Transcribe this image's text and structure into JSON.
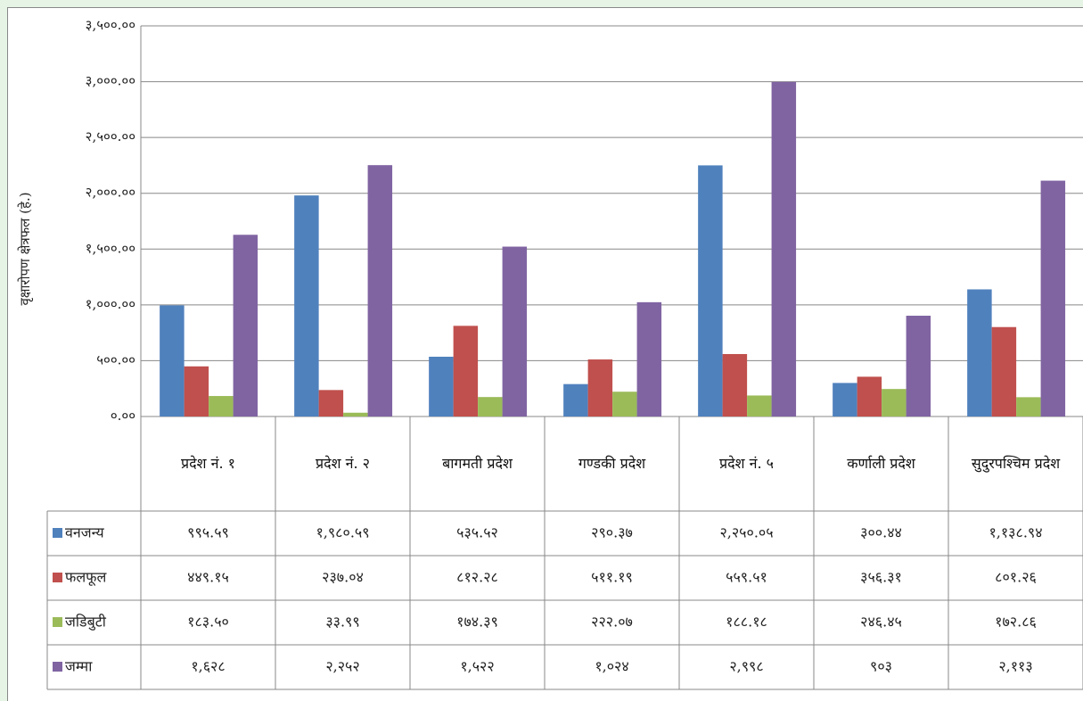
{
  "chart_data": {
    "type": "bar",
    "y_axis_label": "वृक्षारोपण क्षेत्रफल (हे.)",
    "categories": [
      "प्रदेश नं. १",
      "प्रदेश नं. २",
      "बागमती प्रदेश",
      "गण्डकी प्रदेश",
      "प्रदेश नं. ५",
      "कर्णाली प्रदेश",
      "सुदुरपश्चिम प्रदेश"
    ],
    "series": [
      {
        "name": "वनजन्य",
        "color": "#4f81bd",
        "values": [
          995.59,
          1980.59,
          535.52,
          290.37,
          2250.05,
          300.44,
          1138.94
        ],
        "value_labels": [
          "९९५.५९",
          "१,९८०.५९",
          "५३५.५२",
          "२९०.३७",
          "२,२५०.०५",
          "३००.४४",
          "१,१३८.९४"
        ]
      },
      {
        "name": "फलफूल",
        "color": "#c0504d",
        "values": [
          449.15,
          237.04,
          812.28,
          511.19,
          559.51,
          356.31,
          801.26
        ],
        "value_labels": [
          "४४९.१५",
          "२३७.०४",
          "८१२.२८",
          "५११.१९",
          "५५९.५१",
          "३५६.३१",
          "८०१.२६"
        ]
      },
      {
        "name": "जडिबुटी",
        "color": "#9bbb59",
        "values": [
          183.5,
          33.99,
          174.39,
          222.07,
          188.18,
          246.45,
          172.86
        ],
        "value_labels": [
          "१८३.५०",
          "३३.९९",
          "१७४.३९",
          "२२२.०७",
          "१८८.१८",
          "२४६.४५",
          "१७२.८६"
        ]
      },
      {
        "name": "जम्मा",
        "color": "#8064a2",
        "values": [
          1628,
          2252,
          1522,
          1024,
          2998,
          903,
          2113
        ],
        "value_labels": [
          "१,६२८",
          "२,२५२",
          "१,५२२",
          "१,०२४",
          "२,९९८",
          "९०३",
          "२,११३"
        ]
      }
    ],
    "ylim": [
      0,
      3500
    ],
    "yticks": [
      {
        "value": 0,
        "label": "०.००"
      },
      {
        "value": 500,
        "label": "५००.००"
      },
      {
        "value": 1000,
        "label": "१,०००.००"
      },
      {
        "value": 1500,
        "label": "१,५००.००"
      },
      {
        "value": 2000,
        "label": "२,०००.००"
      },
      {
        "value": 2500,
        "label": "२,५००.००"
      },
      {
        "value": 3000,
        "label": "३,०००.००"
      },
      {
        "value": 3500,
        "label": "३,५००.००"
      }
    ],
    "grid": true
  }
}
